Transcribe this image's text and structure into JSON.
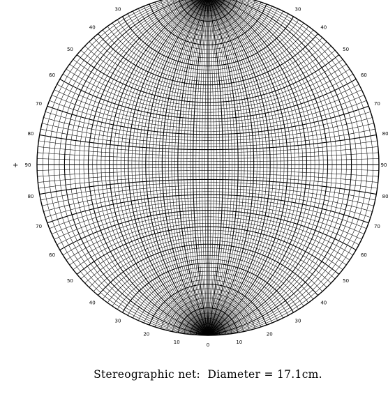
{
  "caption": "Stereographic net:  Diameter = 17.1cm.",
  "cross_mark": "+",
  "net": {
    "type": "wulff-stereographic",
    "minor_interval_deg": 2,
    "major_interval_deg": 10,
    "line_color": "#000000"
  },
  "labels": {
    "bottom_center": "0",
    "bottom_left": [
      "10",
      "20",
      "30",
      "40",
      "50",
      "60",
      "70",
      "80"
    ],
    "bottom_right": [
      "10",
      "20",
      "30",
      "40",
      "50",
      "60",
      "70",
      "80"
    ],
    "top_left": [
      "30",
      "40",
      "50",
      "60",
      "70",
      "80"
    ],
    "top_right": [
      "30",
      "40",
      "50",
      "60",
      "70",
      "80"
    ],
    "left_equator": "90",
    "right_equator": "90"
  }
}
